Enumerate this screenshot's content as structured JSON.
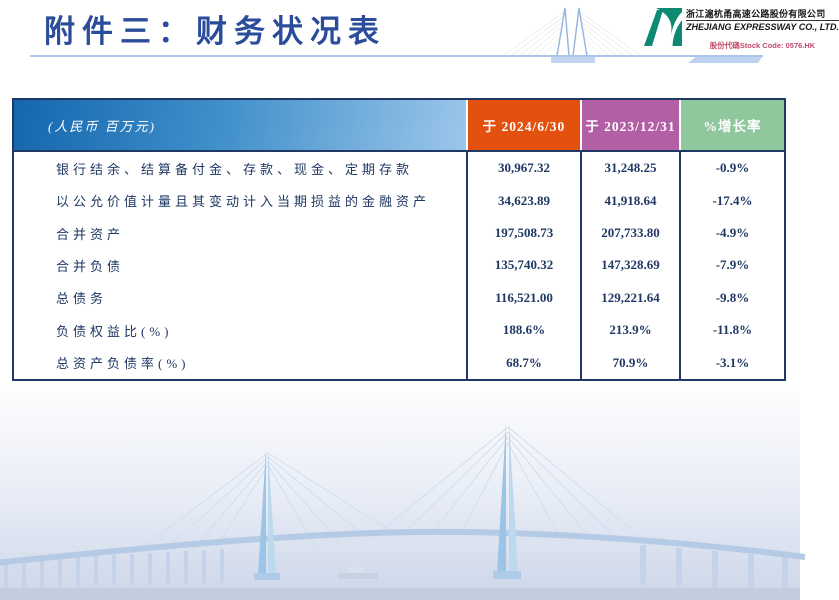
{
  "slide": {
    "title": "附件三：财务状况表",
    "logo": {
      "company_cn": "浙江滬杭甬高速公路股份有限公司",
      "company_en": "ZHEJIANG EXPRESSWAY CO., LTD.",
      "stock_code": "股份代碼Stock Code: 0576.HK"
    },
    "colors": {
      "title_blue": "#2b4c9b",
      "table_border_navy": "#1f3864",
      "text_navy": "#1f3864",
      "rule_blue": "#a9c6e8",
      "stock_code_red": "#c04a6b",
      "logo_green": "#0e8a72",
      "header_gradient_left": "#1566ae",
      "header_gradient_right": "#9cc6ea"
    }
  },
  "table": {
    "unit_header": "(人民币 百万元)",
    "columns": [
      {
        "label": "于 2024/6/30",
        "color": "#e4510e"
      },
      {
        "label": "于 2023/12/31",
        "color": "#b35fa5"
      },
      {
        "label": "%增长率",
        "color": "#8fc89d"
      }
    ],
    "rows": [
      {
        "label": "银行结余、结算备付金、存款、现金、定期存款",
        "v2024": "30,967.32",
        "v2023": "31,248.25",
        "change": "-0.9%"
      },
      {
        "label": "以公允价值计量且其变动计入当期损益的金融资产",
        "v2024": "34,623.89",
        "v2023": "41,918.64",
        "change": "-17.4%"
      },
      {
        "label": "合并资产",
        "v2024": "197,508.73",
        "v2023": "207,733.80",
        "change": "-4.9%"
      },
      {
        "label": "合并负债",
        "v2024": "135,740.32",
        "v2023": "147,328.69",
        "change": "-7.9%"
      },
      {
        "label": "总债务",
        "v2024": "116,521.00",
        "v2023": "129,221.64",
        "change": "-9.8%"
      },
      {
        "label": "负债权益比(%)",
        "v2024": "188.6%",
        "v2023": "213.9%",
        "change": "-11.8%"
      },
      {
        "label": "总资产负债率(%)",
        "v2024": "68.7%",
        "v2023": "70.9%",
        "change": "-3.1%"
      }
    ]
  }
}
